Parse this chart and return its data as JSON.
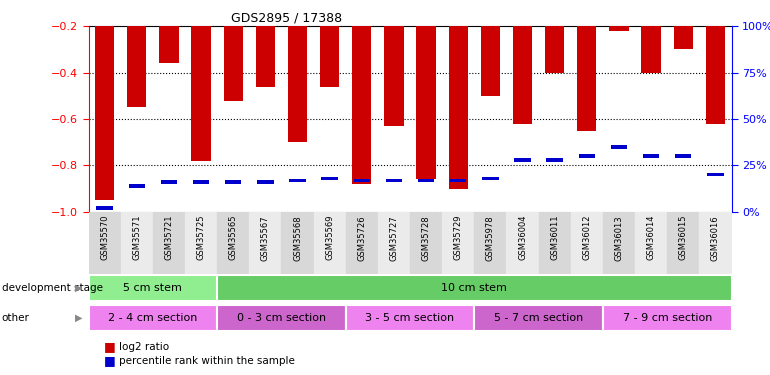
{
  "title": "GDS2895 / 17388",
  "samples": [
    "GSM35570",
    "GSM35571",
    "GSM35721",
    "GSM35725",
    "GSM35565",
    "GSM35567",
    "GSM35568",
    "GSM35569",
    "GSM35726",
    "GSM35727",
    "GSM35728",
    "GSM35729",
    "GSM35978",
    "GSM36004",
    "GSM36011",
    "GSM36012",
    "GSM36013",
    "GSM36014",
    "GSM36015",
    "GSM36016"
  ],
  "log2_ratio": [
    -0.95,
    -0.55,
    -0.36,
    -0.78,
    -0.52,
    -0.46,
    -0.7,
    -0.46,
    -0.88,
    -0.63,
    -0.86,
    -0.9,
    -0.5,
    -0.62,
    -0.4,
    -0.65,
    -0.22,
    -0.4,
    -0.3,
    -0.62
  ],
  "percentile": [
    2,
    14,
    16,
    16,
    16,
    16,
    17,
    18,
    17,
    17,
    17,
    17,
    18,
    28,
    28,
    30,
    35,
    30,
    30,
    20
  ],
  "dev_stage_groups": [
    {
      "label": "5 cm stem",
      "start": 0,
      "end": 4,
      "color": "#90EE90"
    },
    {
      "label": "10 cm stem",
      "start": 4,
      "end": 20,
      "color": "#66CC66"
    }
  ],
  "other_groups": [
    {
      "label": "2 - 4 cm section",
      "start": 0,
      "end": 4,
      "color": "#EE82EE"
    },
    {
      "label": "0 - 3 cm section",
      "start": 4,
      "end": 8,
      "color": "#CC66CC"
    },
    {
      "label": "3 - 5 cm section",
      "start": 8,
      "end": 12,
      "color": "#EE82EE"
    },
    {
      "label": "5 - 7 cm section",
      "start": 12,
      "end": 16,
      "color": "#CC66CC"
    },
    {
      "label": "7 - 9 cm section",
      "start": 16,
      "end": 20,
      "color": "#EE82EE"
    }
  ],
  "bar_color": "#CC0000",
  "percentile_color": "#0000CC",
  "left_yticks": [
    -1.0,
    -0.8,
    -0.6,
    -0.4,
    -0.2
  ],
  "right_yticks": [
    0,
    25,
    50,
    75,
    100
  ],
  "bar_width": 0.6,
  "percentile_bar_height": 0.015,
  "legend_red_label": "log2 ratio",
  "legend_blue_label": "percentile rank within the sample",
  "dev_stage_label": "development stage",
  "other_label": "other"
}
